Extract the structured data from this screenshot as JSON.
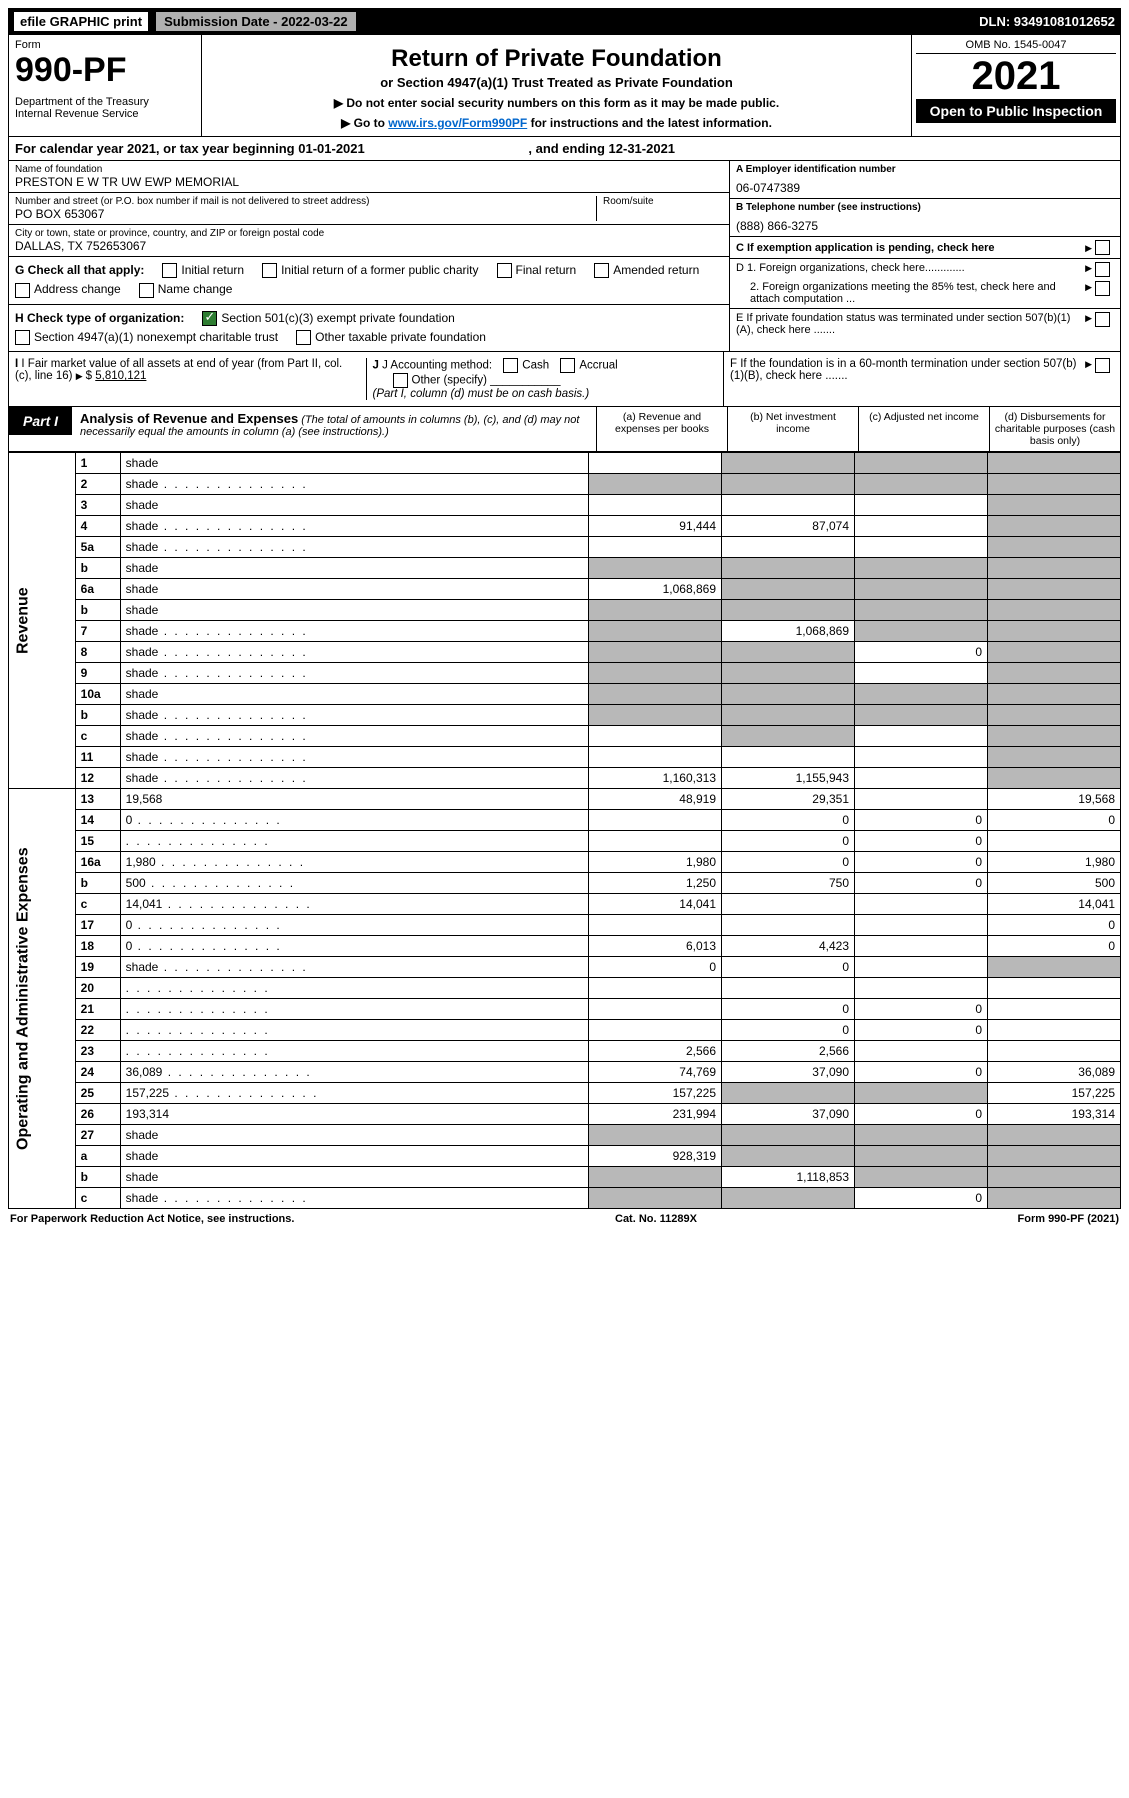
{
  "top": {
    "efile": "efile GRAPHIC print",
    "submission": "Submission Date - 2022-03-22",
    "dln": "DLN: 93491081012652"
  },
  "header": {
    "form_label": "Form",
    "form_num": "990-PF",
    "dept": "Department of the Treasury",
    "irs": "Internal Revenue Service",
    "title": "Return of Private Foundation",
    "subtitle": "or Section 4947(a)(1) Trust Treated as Private Foundation",
    "instr1": "▶ Do not enter social security numbers on this form as it may be made public.",
    "instr2_pre": "▶ Go to ",
    "instr2_link": "www.irs.gov/Form990PF",
    "instr2_post": " for instructions and the latest information.",
    "omb": "OMB No. 1545-0047",
    "year": "2021",
    "open": "Open to Public Inspection"
  },
  "cal_year": {
    "pre": "For calendar year 2021, or tax year beginning ",
    "begin": "01-01-2021",
    "mid": " , and ending ",
    "end": "12-31-2021"
  },
  "info": {
    "name_label": "Name of foundation",
    "name": "PRESTON E W TR UW EWP MEMORIAL",
    "addr_label": "Number and street (or P.O. box number if mail is not delivered to street address)",
    "addr": "PO BOX 653067",
    "room_label": "Room/suite",
    "city_label": "City or town, state or province, country, and ZIP or foreign postal code",
    "city": "DALLAS, TX  752653067",
    "ein_label": "A Employer identification number",
    "ein": "06-0747389",
    "phone_label": "B Telephone number (see instructions)",
    "phone": "(888) 866-3275",
    "c_label": "C If exemption application is pending, check here",
    "d1": "D 1. Foreign organizations, check here.............",
    "d2": "2. Foreign organizations meeting the 85% test, check here and attach computation ...",
    "e": "E  If private foundation status was terminated under section 507(b)(1)(A), check here .......",
    "f": "F  If the foundation is in a 60-month termination under section 507(b)(1)(B), check here ......."
  },
  "g": {
    "label": "G Check all that apply:",
    "opts": [
      "Initial return",
      "Initial return of a former public charity",
      "Final return",
      "Amended return",
      "Address change",
      "Name change"
    ]
  },
  "h": {
    "label": "H Check type of organization:",
    "opt1": "Section 501(c)(3) exempt private foundation",
    "opt2": "Section 4947(a)(1) nonexempt charitable trust",
    "opt3": "Other taxable private foundation"
  },
  "i": {
    "label": "I Fair market value of all assets at end of year (from Part II, col. (c), line 16)",
    "val": "5,810,121"
  },
  "j": {
    "label": "J Accounting method:",
    "cash": "Cash",
    "accrual": "Accrual",
    "other": "Other (specify)",
    "note": "(Part I, column (d) must be on cash basis.)"
  },
  "part1": {
    "label": "Part I",
    "title": "Analysis of Revenue and Expenses",
    "note": "(The total of amounts in columns (b), (c), and (d) may not necessarily equal the amounts in column (a) (see instructions).)",
    "col_a": "(a) Revenue and expenses per books",
    "col_b": "(b) Net investment income",
    "col_c": "(c) Adjusted net income",
    "col_d": "(d) Disbursements for charitable purposes (cash basis only)"
  },
  "side": {
    "rev": "Revenue",
    "exp": "Operating and Administrative Expenses"
  },
  "rows": [
    {
      "n": "1",
      "d": "shade",
      "a": "",
      "b": "shade",
      "c": "shade"
    },
    {
      "n": "2",
      "d": "shade",
      "dots": true,
      "a": "shade",
      "b": "shade",
      "c": "shade"
    },
    {
      "n": "3",
      "d": "shade",
      "a": "",
      "b": "",
      "c": ""
    },
    {
      "n": "4",
      "d": "shade",
      "dots": true,
      "a": "91,444",
      "b": "87,074",
      "c": ""
    },
    {
      "n": "5a",
      "d": "shade",
      "dots": true,
      "a": "",
      "b": "",
      "c": ""
    },
    {
      "n": "b",
      "d": "shade",
      "a": "shade",
      "b": "shade",
      "c": "shade"
    },
    {
      "n": "6a",
      "d": "shade",
      "a": "1,068,869",
      "b": "shade",
      "c": "shade"
    },
    {
      "n": "b",
      "d": "shade",
      "a": "shade",
      "b": "shade",
      "c": "shade"
    },
    {
      "n": "7",
      "d": "shade",
      "dots": true,
      "a": "shade",
      "b": "1,068,869",
      "c": "shade"
    },
    {
      "n": "8",
      "d": "shade",
      "dots": true,
      "a": "shade",
      "b": "shade",
      "c": "0"
    },
    {
      "n": "9",
      "d": "shade",
      "dots": true,
      "a": "shade",
      "b": "shade",
      "c": ""
    },
    {
      "n": "10a",
      "d": "shade",
      "a": "shade",
      "b": "shade",
      "c": "shade"
    },
    {
      "n": "b",
      "d": "shade",
      "dots": true,
      "a": "shade",
      "b": "shade",
      "c": "shade"
    },
    {
      "n": "c",
      "d": "shade",
      "dots": true,
      "a": "",
      "b": "shade",
      "c": ""
    },
    {
      "n": "11",
      "d": "shade",
      "dots": true,
      "a": "",
      "b": "",
      "c": ""
    },
    {
      "n": "12",
      "d": "shade",
      "dots": true,
      "a": "1,160,313",
      "b": "1,155,943",
      "c": ""
    },
    {
      "n": "13",
      "d": "19,568",
      "a": "48,919",
      "b": "29,351",
      "c": ""
    },
    {
      "n": "14",
      "d": "0",
      "dots": true,
      "a": "",
      "b": "0",
      "c": "0"
    },
    {
      "n": "15",
      "d": "",
      "dots": true,
      "a": "",
      "b": "0",
      "c": "0"
    },
    {
      "n": "16a",
      "d": "1,980",
      "dots": true,
      "a": "1,980",
      "b": "0",
      "c": "0"
    },
    {
      "n": "b",
      "d": "500",
      "dots": true,
      "a": "1,250",
      "b": "750",
      "c": "0"
    },
    {
      "n": "c",
      "d": "14,041",
      "dots": true,
      "a": "14,041",
      "b": "",
      "c": ""
    },
    {
      "n": "17",
      "d": "0",
      "dots": true,
      "a": "",
      "b": "",
      "c": ""
    },
    {
      "n": "18",
      "d": "0",
      "dots": true,
      "a": "6,013",
      "b": "4,423",
      "c": ""
    },
    {
      "n": "19",
      "d": "shade",
      "dots": true,
      "a": "0",
      "b": "0",
      "c": ""
    },
    {
      "n": "20",
      "d": "",
      "dots": true,
      "a": "",
      "b": "",
      "c": ""
    },
    {
      "n": "21",
      "d": "",
      "dots": true,
      "a": "",
      "b": "0",
      "c": "0"
    },
    {
      "n": "22",
      "d": "",
      "dots": true,
      "a": "",
      "b": "0",
      "c": "0"
    },
    {
      "n": "23",
      "d": "",
      "dots": true,
      "a": "2,566",
      "b": "2,566",
      "c": ""
    },
    {
      "n": "24",
      "d": "36,089",
      "dots": true,
      "a": "74,769",
      "b": "37,090",
      "c": "0"
    },
    {
      "n": "25",
      "d": "157,225",
      "dots": true,
      "a": "157,225",
      "b": "shade",
      "c": "shade"
    },
    {
      "n": "26",
      "d": "193,314",
      "a": "231,994",
      "b": "37,090",
      "c": "0"
    },
    {
      "n": "27",
      "d": "shade",
      "a": "shade",
      "b": "shade",
      "c": "shade"
    },
    {
      "n": "a",
      "d": "shade",
      "a": "928,319",
      "b": "shade",
      "c": "shade"
    },
    {
      "n": "b",
      "d": "shade",
      "a": "shade",
      "b": "1,118,853",
      "c": "shade"
    },
    {
      "n": "c",
      "d": "shade",
      "dots": true,
      "a": "shade",
      "b": "shade",
      "c": "0"
    }
  ],
  "footer": {
    "left": "For Paperwork Reduction Act Notice, see instructions.",
    "mid": "Cat. No. 11289X",
    "right": "Form 990-PF (2021)"
  }
}
